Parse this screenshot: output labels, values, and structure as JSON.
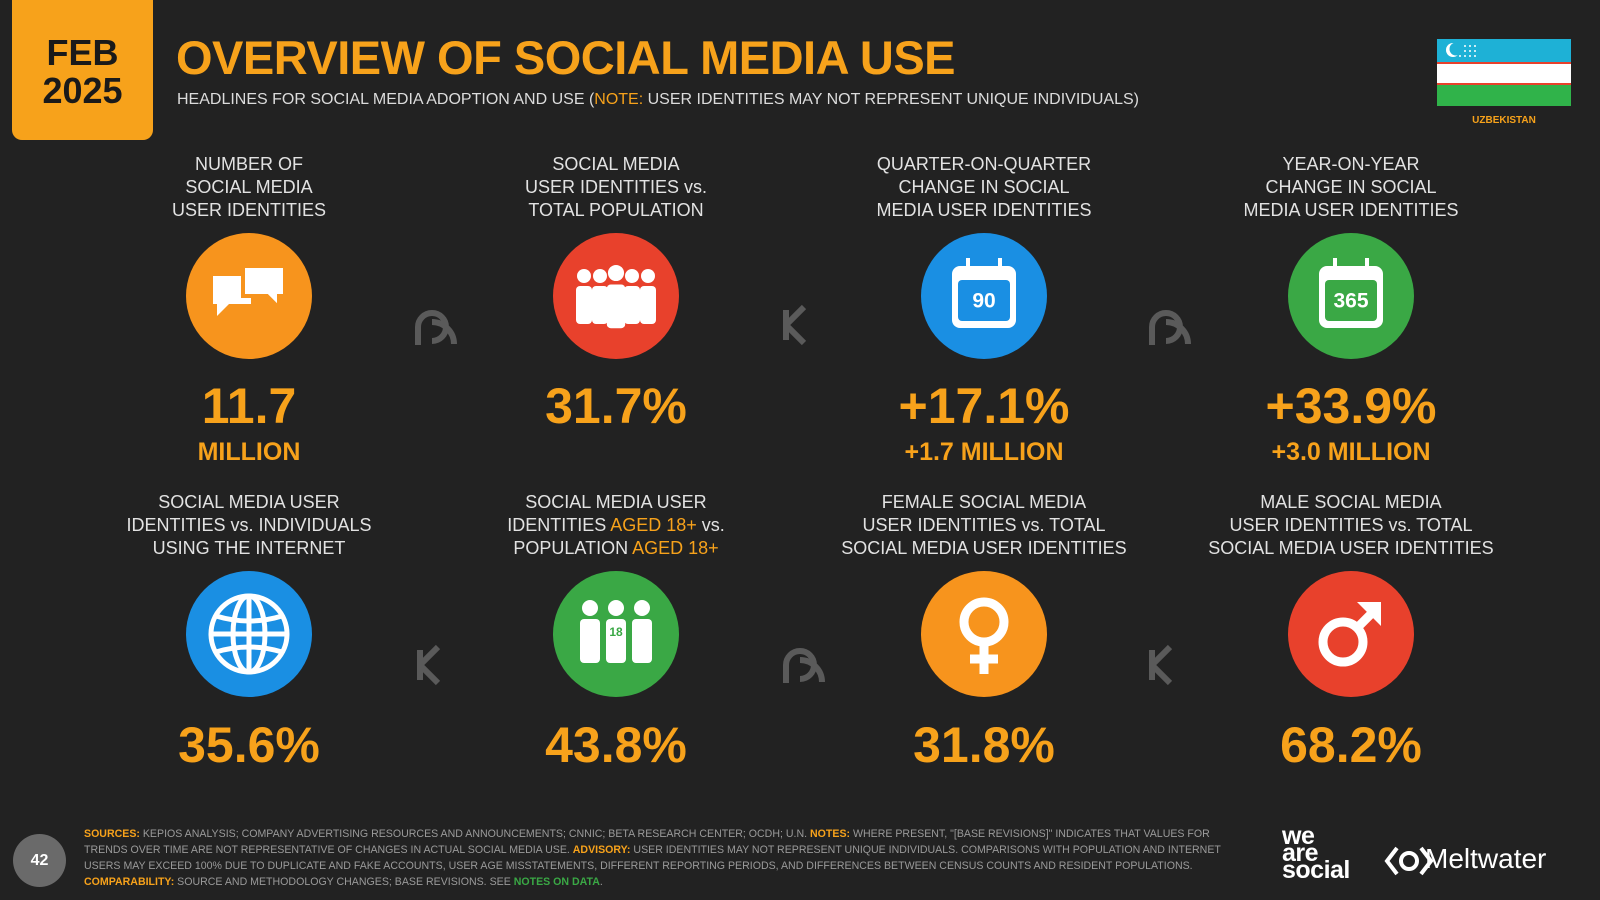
{
  "badge": {
    "month": "FEB",
    "year": "2025"
  },
  "header": {
    "title": "OVERVIEW OF SOCIAL MEDIA USE",
    "subtitle": [
      {
        "text": "HEADLINES FOR SOCIAL MEDIA ADOPTION AND USE ("
      },
      {
        "text": "NOTE:",
        "color": "#f7a21b"
      },
      {
        "text": " USER IDENTITIES MAY NOT REPRESENT UNIQUE INDIVIDUALS)"
      }
    ],
    "country": "UZBEKISTAN"
  },
  "stats": [
    {
      "label": [
        [
          {
            "text": "NUMBER OF"
          }
        ],
        [
          {
            "text": "SOCIAL MEDIA"
          }
        ],
        [
          {
            "text": "USER IDENTITIES"
          }
        ]
      ],
      "icon_color": "#f7941d",
      "value": "11.7",
      "sub": "MILLION"
    },
    {
      "label": [
        [
          {
            "text": "SOCIAL MEDIA"
          }
        ],
        [
          {
            "text": "USER IDENTITIES vs."
          }
        ],
        [
          {
            "text": "TOTAL POPULATION"
          }
        ]
      ],
      "icon_color": "#e8412c",
      "value": "31.7%"
    },
    {
      "label": [
        [
          {
            "text": "QUARTER-ON-QUARTER"
          }
        ],
        [
          {
            "text": "CHANGE IN SOCIAL"
          }
        ],
        [
          {
            "text": "MEDIA USER IDENTITIES"
          }
        ]
      ],
      "icon_color": "#1a8fe3",
      "icon_text": "90",
      "value": "+17.1%",
      "sub": "+1.7 MILLION"
    },
    {
      "label": [
        [
          {
            "text": "YEAR-ON-YEAR"
          }
        ],
        [
          {
            "text": "CHANGE IN SOCIAL"
          }
        ],
        [
          {
            "text": "MEDIA USER IDENTITIES"
          }
        ]
      ],
      "icon_color": "#3aa845",
      "icon_text": "365",
      "value": "+33.9%",
      "sub": "+3.0 MILLION"
    },
    {
      "label": [
        [
          {
            "text": "SOCIAL MEDIA USER"
          }
        ],
        [
          {
            "text": "IDENTITIES vs. INDIVIDUALS"
          }
        ],
        [
          {
            "text": "USING THE INTERNET"
          }
        ]
      ],
      "icon_color": "#1a8fe3",
      "value": "35.6%"
    },
    {
      "label": [
        [
          {
            "text": "SOCIAL MEDIA USER"
          }
        ],
        [
          {
            "text": "IDENTITIES "
          },
          {
            "text": "AGED 18+",
            "color": "#f7a21b"
          },
          {
            "text": " vs."
          }
        ],
        [
          {
            "text": "POPULATION "
          },
          {
            "text": "AGED 18+",
            "color": "#f7a21b"
          }
        ]
      ],
      "icon_color": "#3aa845",
      "icon_text": "18",
      "value": "43.8%"
    },
    {
      "label": [
        [
          {
            "text": "FEMALE SOCIAL MEDIA"
          }
        ],
        [
          {
            "text": "USER IDENTITIES vs. TOTAL"
          }
        ],
        [
          {
            "text": "SOCIAL MEDIA USER IDENTITIES"
          }
        ]
      ],
      "icon_color": "#f7941d",
      "value": "31.8%"
    },
    {
      "label": [
        [
          {
            "text": "MALE SOCIAL MEDIA"
          }
        ],
        [
          {
            "text": "USER IDENTITIES vs. TOTAL"
          }
        ],
        [
          {
            "text": "SOCIAL MEDIA USER IDENTITIES"
          }
        ]
      ],
      "icon_color": "#e8412c",
      "value": "68.2%"
    }
  ],
  "footer": {
    "page": "42",
    "notes": [
      {
        "text": "SOURCES:",
        "color": "#f7a21b"
      },
      {
        "text": " KEPIOS ANALYSIS; COMPANY ADVERTISING RESOURCES AND ANNOUNCEMENTS; CNNIC; BETA RESEARCH CENTER; OCDH; U.N. "
      },
      {
        "text": "NOTES:",
        "color": "#f7a21b"
      },
      {
        "text": " WHERE PRESENT, \"[BASE REVISIONS]\" INDICATES THAT VALUES FOR TRENDS OVER TIME ARE NOT REPRESENTATIVE OF CHANGES IN ACTUAL SOCIAL MEDIA USE. "
      },
      {
        "text": "ADVISORY:",
        "color": "#f7a21b"
      },
      {
        "text": " USER IDENTITIES MAY NOT REPRESENT UNIQUE INDIVIDUALS. COMPARISONS WITH POPULATION AND INTERNET USERS MAY EXCEED 100% DUE TO DUPLICATE AND FAKE ACCOUNTS, USER AGE MISSTATEMENTS, DIFFERENT REPORTING PERIODS, AND DIFFERENCES BETWEEN CENSUS COUNTS AND RESIDENT POPULATIONS. "
      },
      {
        "text": "COMPARABILITY:",
        "color": "#f7a21b"
      },
      {
        "text": " SOURCE AND METHODOLOGY CHANGES; BASE REVISIONS. SEE "
      },
      {
        "text": "NOTES ON DATA",
        "color": "#3aa845"
      },
      {
        "text": "."
      }
    ],
    "brand1": [
      "we",
      "are",
      "social"
    ],
    "brand2": "Meltwater"
  }
}
